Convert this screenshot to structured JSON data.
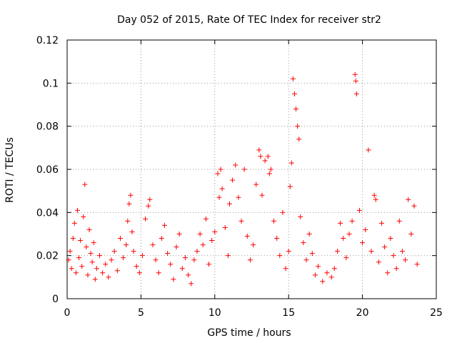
{
  "chart_data": {
    "type": "scatter",
    "title": "Day 052 of 2015, Rate Of TEC Index for receiver str2",
    "xlabel": "GPS time / hours",
    "ylabel": "ROTI / TECUs",
    "xlim": [
      0,
      25
    ],
    "ylim": [
      0,
      0.12
    ],
    "xticks": [
      0,
      5,
      10,
      15,
      20,
      25
    ],
    "xtick_labels": [
      "0",
      "5",
      "10",
      "15",
      "20",
      "25"
    ],
    "yticks": [
      0,
      0.02,
      0.04,
      0.06,
      0.08,
      0.1,
      0.12
    ],
    "ytick_labels": [
      "0",
      "0.02",
      "0.04",
      "0.06",
      "0.08",
      "0.1",
      "0.12"
    ],
    "grid": true,
    "marker": "+",
    "color": "#ff0000",
    "series": [
      {
        "name": "ROTI",
        "points": [
          [
            0.1,
            0.018
          ],
          [
            0.2,
            0.022
          ],
          [
            0.3,
            0.014
          ],
          [
            0.4,
            0.028
          ],
          [
            0.5,
            0.035
          ],
          [
            0.6,
            0.012
          ],
          [
            0.7,
            0.041
          ],
          [
            0.8,
            0.019
          ],
          [
            0.9,
            0.027
          ],
          [
            1.0,
            0.015
          ],
          [
            1.1,
            0.038
          ],
          [
            1.2,
            0.053
          ],
          [
            1.3,
            0.024
          ],
          [
            1.4,
            0.011
          ],
          [
            1.5,
            0.032
          ],
          [
            1.6,
            0.021
          ],
          [
            1.7,
            0.017
          ],
          [
            1.8,
            0.026
          ],
          [
            1.9,
            0.009
          ],
          [
            2.0,
            0.014
          ],
          [
            2.2,
            0.02
          ],
          [
            2.4,
            0.012
          ],
          [
            2.6,
            0.016
          ],
          [
            2.8,
            0.01
          ],
          [
            3.0,
            0.018
          ],
          [
            3.2,
            0.022
          ],
          [
            3.4,
            0.013
          ],
          [
            3.6,
            0.028
          ],
          [
            3.8,
            0.019
          ],
          [
            4.0,
            0.025
          ],
          [
            4.1,
            0.036
          ],
          [
            4.2,
            0.044
          ],
          [
            4.3,
            0.048
          ],
          [
            4.4,
            0.031
          ],
          [
            4.5,
            0.022
          ],
          [
            4.7,
            0.015
          ],
          [
            4.9,
            0.012
          ],
          [
            5.1,
            0.02
          ],
          [
            5.3,
            0.037
          ],
          [
            5.5,
            0.043
          ],
          [
            5.6,
            0.046
          ],
          [
            5.8,
            0.025
          ],
          [
            6.0,
            0.018
          ],
          [
            6.2,
            0.012
          ],
          [
            6.4,
            0.028
          ],
          [
            6.6,
            0.034
          ],
          [
            6.8,
            0.021
          ],
          [
            7.0,
            0.016
          ],
          [
            7.2,
            0.009
          ],
          [
            7.4,
            0.024
          ],
          [
            7.6,
            0.03
          ],
          [
            7.8,
            0.014
          ],
          [
            8.0,
            0.019
          ],
          [
            8.2,
            0.011
          ],
          [
            8.4,
            0.007
          ],
          [
            8.6,
            0.018
          ],
          [
            8.8,
            0.022
          ],
          [
            9.0,
            0.03
          ],
          [
            9.2,
            0.025
          ],
          [
            9.4,
            0.037
          ],
          [
            9.6,
            0.016
          ],
          [
            9.8,
            0.027
          ],
          [
            10.0,
            0.031
          ],
          [
            10.2,
            0.058
          ],
          [
            10.3,
            0.047
          ],
          [
            10.4,
            0.06
          ],
          [
            10.5,
            0.051
          ],
          [
            10.7,
            0.033
          ],
          [
            10.9,
            0.02
          ],
          [
            11.0,
            0.044
          ],
          [
            11.2,
            0.055
          ],
          [
            11.4,
            0.062
          ],
          [
            11.6,
            0.047
          ],
          [
            11.8,
            0.036
          ],
          [
            12.0,
            0.06
          ],
          [
            12.2,
            0.029
          ],
          [
            12.4,
            0.018
          ],
          [
            12.6,
            0.025
          ],
          [
            12.8,
            0.053
          ],
          [
            13.0,
            0.069
          ],
          [
            13.1,
            0.066
          ],
          [
            13.2,
            0.048
          ],
          [
            13.4,
            0.064
          ],
          [
            13.6,
            0.066
          ],
          [
            13.7,
            0.058
          ],
          [
            13.8,
            0.06
          ],
          [
            14.0,
            0.036
          ],
          [
            14.2,
            0.028
          ],
          [
            14.4,
            0.02
          ],
          [
            14.6,
            0.04
          ],
          [
            14.8,
            0.014
          ],
          [
            15.0,
            0.022
          ],
          [
            15.1,
            0.052
          ],
          [
            15.2,
            0.063
          ],
          [
            15.3,
            0.102
          ],
          [
            15.4,
            0.095
          ],
          [
            15.5,
            0.088
          ],
          [
            15.6,
            0.08
          ],
          [
            15.7,
            0.074
          ],
          [
            15.8,
            0.038
          ],
          [
            16.0,
            0.026
          ],
          [
            16.2,
            0.018
          ],
          [
            16.4,
            0.03
          ],
          [
            16.6,
            0.021
          ],
          [
            16.8,
            0.011
          ],
          [
            17.0,
            0.015
          ],
          [
            17.3,
            0.008
          ],
          [
            17.6,
            0.012
          ],
          [
            17.9,
            0.01
          ],
          [
            18.1,
            0.014
          ],
          [
            18.3,
            0.022
          ],
          [
            18.5,
            0.035
          ],
          [
            18.7,
            0.028
          ],
          [
            18.9,
            0.019
          ],
          [
            19.1,
            0.03
          ],
          [
            19.3,
            0.036
          ],
          [
            19.5,
            0.104
          ],
          [
            19.55,
            0.101
          ],
          [
            19.6,
            0.095
          ],
          [
            19.8,
            0.041
          ],
          [
            20.0,
            0.026
          ],
          [
            20.2,
            0.032
          ],
          [
            20.4,
            0.069
          ],
          [
            20.6,
            0.022
          ],
          [
            20.8,
            0.048
          ],
          [
            20.9,
            0.046
          ],
          [
            21.1,
            0.017
          ],
          [
            21.3,
            0.035
          ],
          [
            21.5,
            0.024
          ],
          [
            21.7,
            0.012
          ],
          [
            21.9,
            0.028
          ],
          [
            22.1,
            0.02
          ],
          [
            22.3,
            0.014
          ],
          [
            22.5,
            0.036
          ],
          [
            22.7,
            0.022
          ],
          [
            22.9,
            0.018
          ],
          [
            23.1,
            0.046
          ],
          [
            23.3,
            0.03
          ],
          [
            23.5,
            0.043
          ],
          [
            23.7,
            0.016
          ]
        ]
      }
    ]
  }
}
